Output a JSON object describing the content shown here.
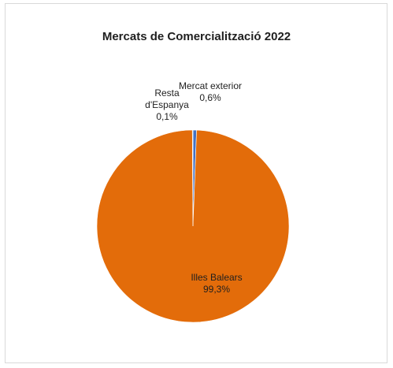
{
  "chart_data": {
    "type": "pie",
    "title": "Mercats de Comercialització 2022",
    "slices": [
      {
        "label_lines": [
          "Mercat exterior",
          "0,6%"
        ],
        "value": 0.6,
        "color": "#4472c4"
      },
      {
        "label_lines": [
          "Illes Balears",
          "99,3%"
        ],
        "value": 99.3,
        "color": "#e36c0a"
      },
      {
        "label_lines": [
          "Resta",
          "d'Espanya",
          "0,1%"
        ],
        "value": 0.1,
        "color": "#a5a5a5"
      }
    ],
    "legend": "none"
  }
}
